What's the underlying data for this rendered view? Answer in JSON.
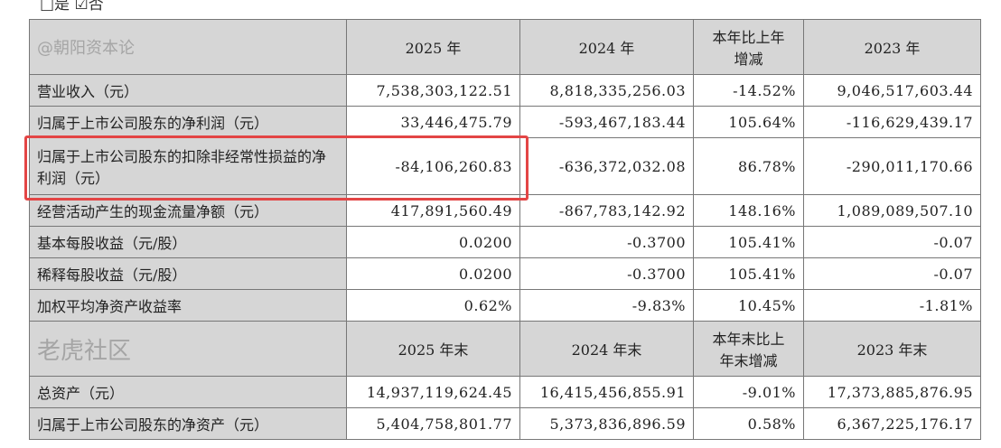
{
  "top_text": "□是 ☑否",
  "header1": [
    "",
    "2025 年",
    "2024 年",
    "本年比上年\n增减",
    "2023 年"
  ],
  "rows1": [
    [
      "营业收入（元）",
      "7,538,303,122.51",
      "8,818,335,256.03",
      "-14.52%",
      "9,046,517,603.44"
    ],
    [
      "归属于上市公司股东的净利润（元）",
      "33,446,475.79",
      "-593,467,183.44",
      "105.64%",
      "-116,629,439.17"
    ],
    [
      "归属于上市公司股东的扣除非经常性损益的净利润（元）",
      "-84,106,260.83",
      "-636,372,032.08",
      "86.78%",
      "-290,011,170.66"
    ],
    [
      "经营活动产生的现金流量净额（元）",
      "417,891,560.49",
      "-867,783,142.92",
      "148.16%",
      "1,089,089,507.10"
    ],
    [
      "基本每股收益（元/股）",
      "0.0200",
      "-0.3700",
      "105.41%",
      "-0.07"
    ],
    [
      "稀释每股收益（元/股）",
      "0.0200",
      "-0.3700",
      "105.41%",
      "-0.07"
    ],
    [
      "加权平均净资产收益率",
      "0.62%",
      "-9.83%",
      "10.45%",
      "-1.81%"
    ]
  ],
  "header2": [
    "",
    "2025 年末",
    "2024 年末",
    "本年末比上\n年末增减",
    "2023 年末"
  ],
  "rows2": [
    [
      "总资产（元）",
      "14,937,119,624.45",
      "16,415,456,855.91",
      "-9.01%",
      "17,373,885,876.95"
    ],
    [
      "归属于上市公司股东的净资产（元）",
      "5,404,758,801.77",
      "5,373,836,896.59",
      "0.58%",
      "6,367,225,176.17"
    ]
  ],
  "watermark": {
    "logo": "老虎社区",
    "author": "@朝阳资本论"
  },
  "highlight_color": "#e34545"
}
